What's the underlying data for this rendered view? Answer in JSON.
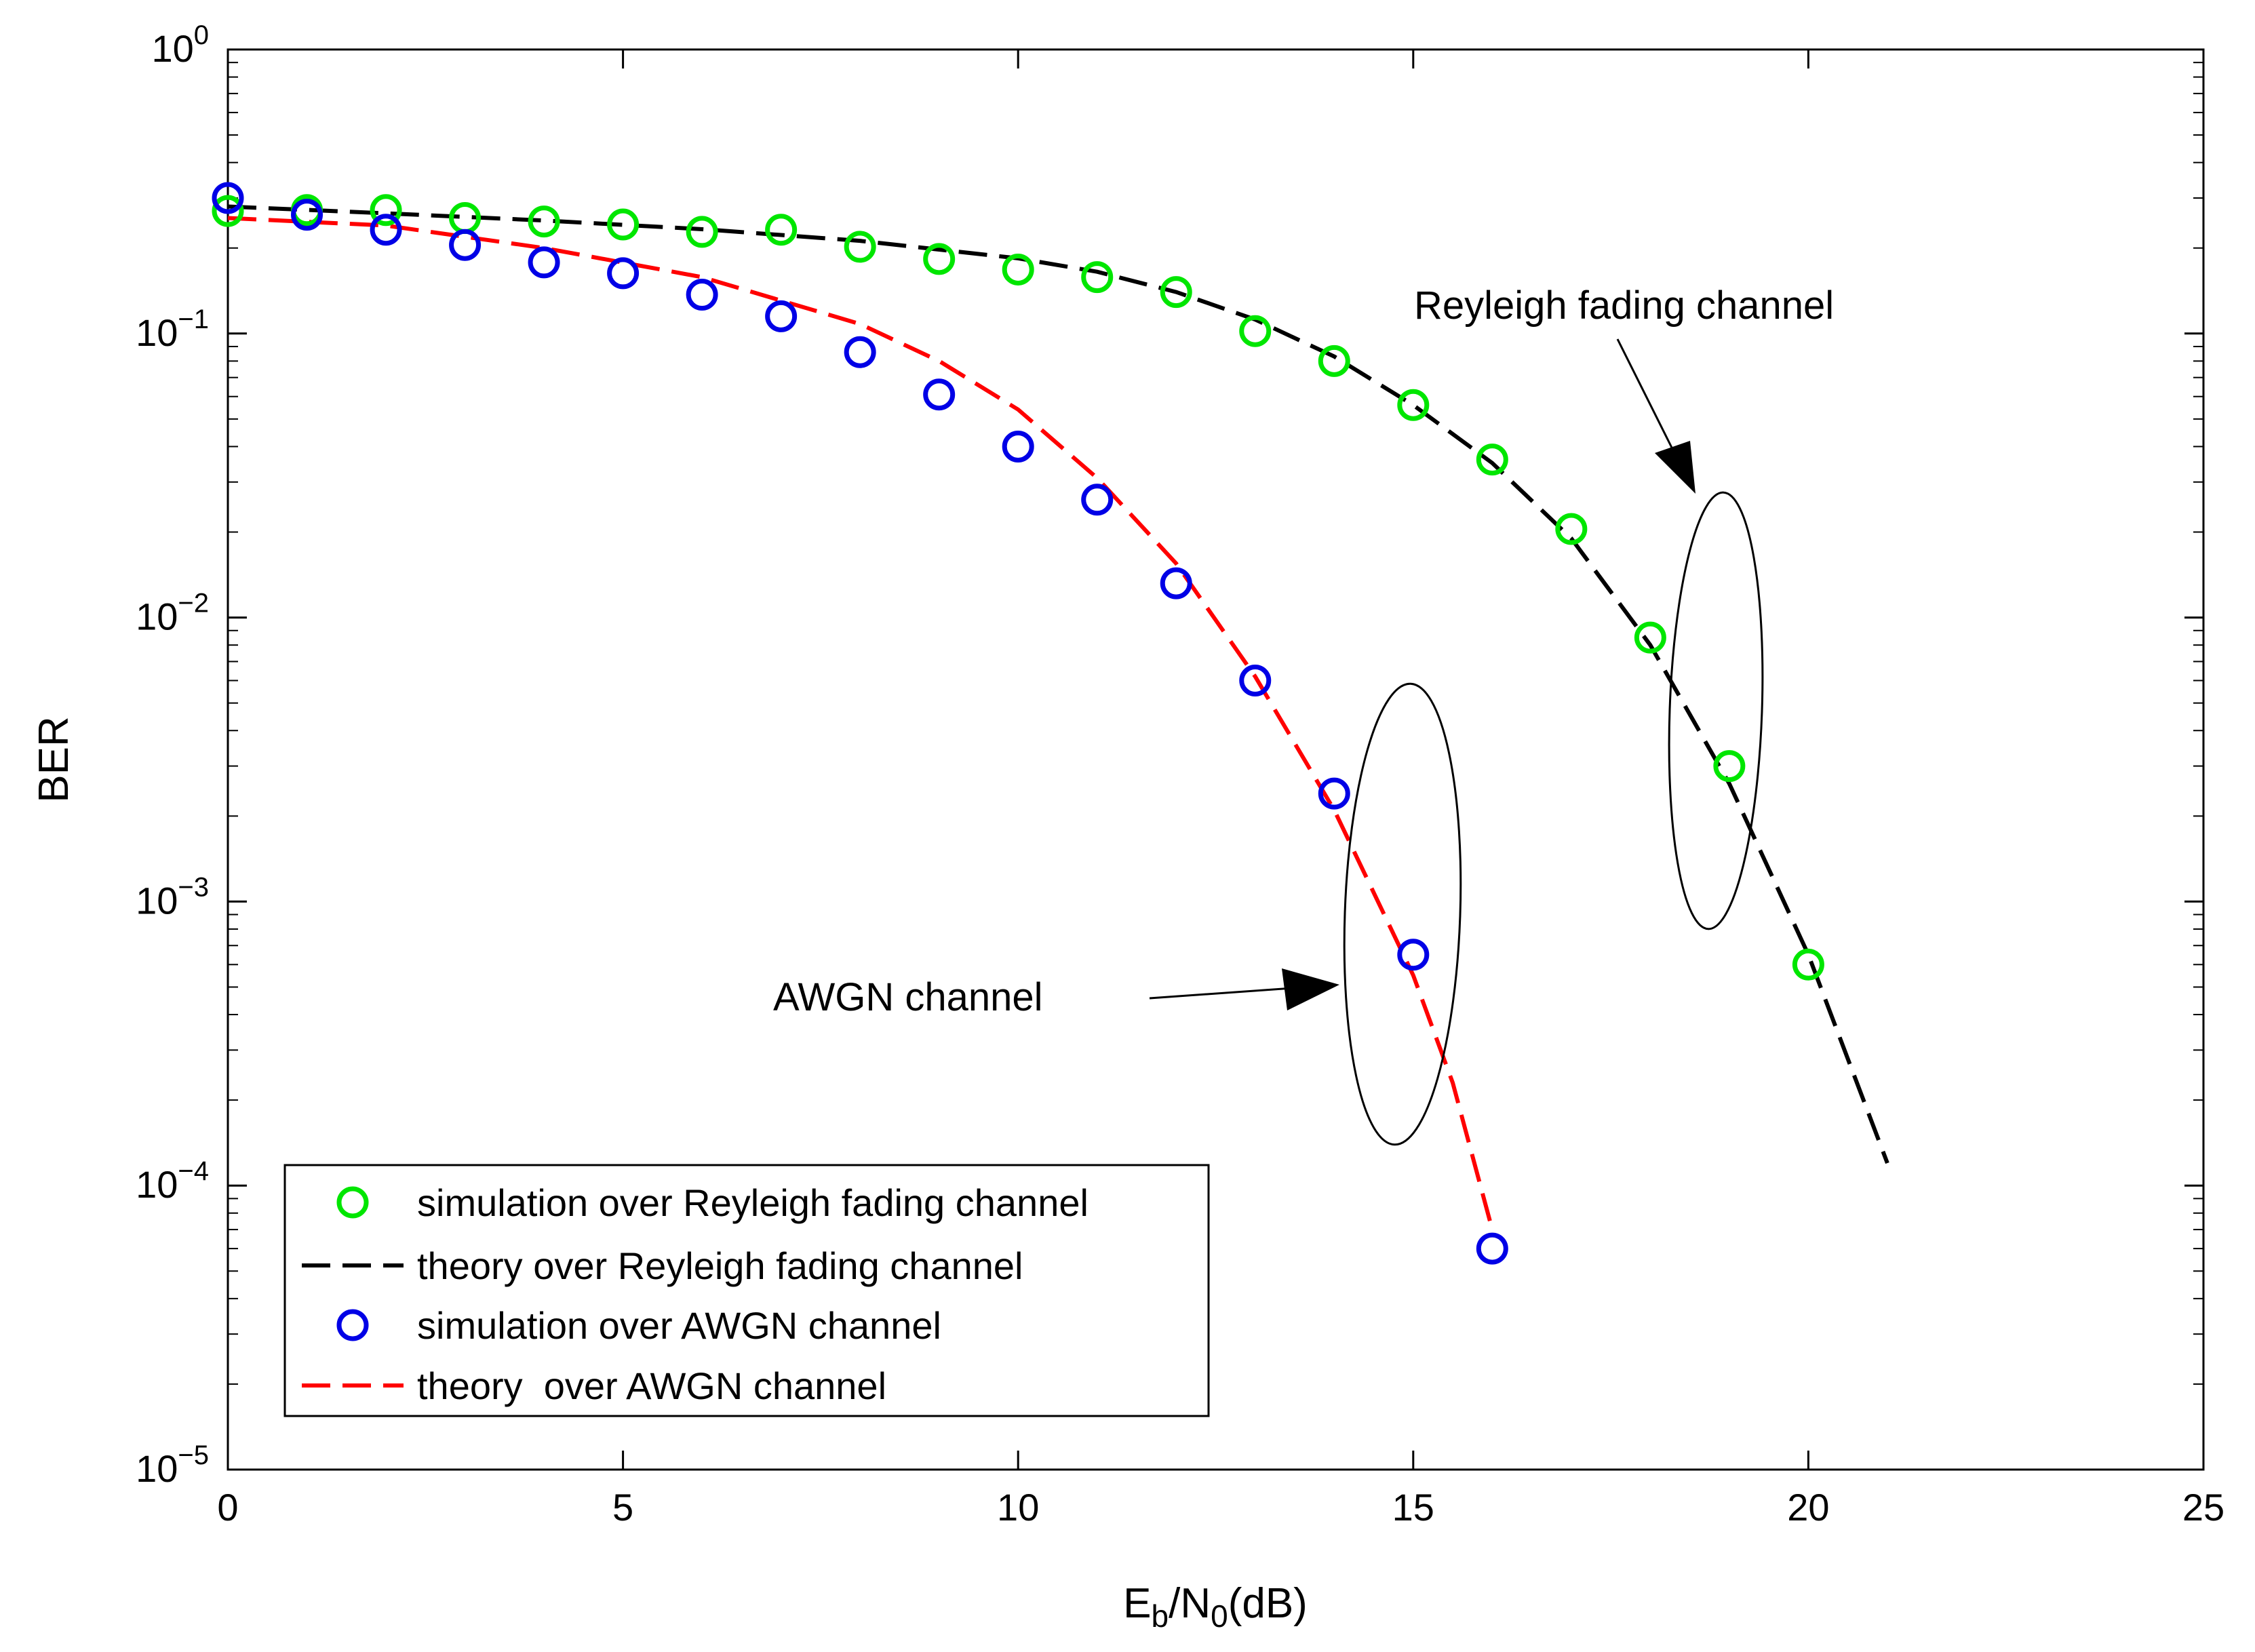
{
  "chart_data": {
    "type": "line",
    "title": "",
    "xlabel": {
      "main": "E",
      "sub1": "b",
      "mid": "/N",
      "sub2": "0",
      "tail": "(dB)"
    },
    "ylabel": "BER",
    "xlim": [
      0,
      25
    ],
    "ylim": [
      1e-05,
      1
    ],
    "yscale": "log",
    "x_ticks": [
      0,
      5,
      10,
      15,
      20,
      25
    ],
    "y_ticks": [
      {
        "value": 1,
        "base": "10",
        "exp": "0"
      },
      {
        "value": 0.1,
        "base": "10",
        "exp": "−1"
      },
      {
        "value": 0.01,
        "base": "10",
        "exp": "−2"
      },
      {
        "value": 0.001,
        "base": "10",
        "exp": "−3"
      },
      {
        "value": 0.0001,
        "base": "10",
        "exp": "−4"
      },
      {
        "value": 1e-05,
        "base": "10",
        "exp": "−5"
      }
    ],
    "series": [
      {
        "name": "simulation over Reyleigh fading channel",
        "kind": "markers",
        "color": "#00e600",
        "x": [
          0,
          1,
          2,
          3,
          4,
          5,
          6,
          7,
          8,
          9,
          10,
          11,
          12,
          13,
          14,
          15,
          16,
          17,
          18,
          19,
          20
        ],
        "y": [
          0.27,
          0.272,
          0.272,
          0.255,
          0.248,
          0.242,
          0.228,
          0.232,
          0.202,
          0.183,
          0.168,
          0.158,
          0.14,
          0.102,
          0.08,
          0.056,
          0.036,
          0.0205,
          0.0085,
          0.003,
          0.0006
        ]
      },
      {
        "name": "theory over Reyleigh fading channel",
        "kind": "dashed",
        "color": "#000000",
        "x": [
          0,
          2,
          4,
          6,
          8,
          10,
          11,
          12,
          13,
          14,
          15,
          16,
          17,
          18,
          19,
          20,
          21
        ],
        "y": [
          0.28,
          0.265,
          0.25,
          0.233,
          0.212,
          0.184,
          0.165,
          0.14,
          0.112,
          0.083,
          0.056,
          0.035,
          0.019,
          0.008,
          0.0026,
          0.00065,
          0.00012
        ]
      },
      {
        "name": "simulation over AWGN channel",
        "kind": "markers",
        "color": "#0000e6",
        "x": [
          0,
          1,
          2,
          3,
          4,
          5,
          6,
          7,
          8,
          9,
          10,
          11,
          12,
          13,
          14,
          15,
          16
        ],
        "y": [
          0.3,
          0.262,
          0.232,
          0.205,
          0.178,
          0.163,
          0.137,
          0.115,
          0.086,
          0.061,
          0.04,
          0.026,
          0.0132,
          0.006,
          0.0024,
          0.00065,
          6e-05
        ]
      },
      {
        "name": "theory  over AWGN channel",
        "kind": "dashed",
        "color": "#ff0000",
        "x": [
          0,
          2,
          4,
          6,
          8,
          9,
          10,
          11,
          12,
          13,
          14,
          15,
          15.5,
          16
        ],
        "y": [
          0.255,
          0.24,
          0.2,
          0.158,
          0.108,
          0.08,
          0.054,
          0.031,
          0.0155,
          0.0062,
          0.0021,
          0.00055,
          0.00023,
          7e-05
        ]
      }
    ],
    "legend": {
      "position": "bottom-left"
    },
    "annotations": [
      {
        "text": "Reyleigh fading channel",
        "target": "Reyleigh curves"
      },
      {
        "text": "AWGN channel",
        "target": "AWGN curves"
      }
    ]
  }
}
